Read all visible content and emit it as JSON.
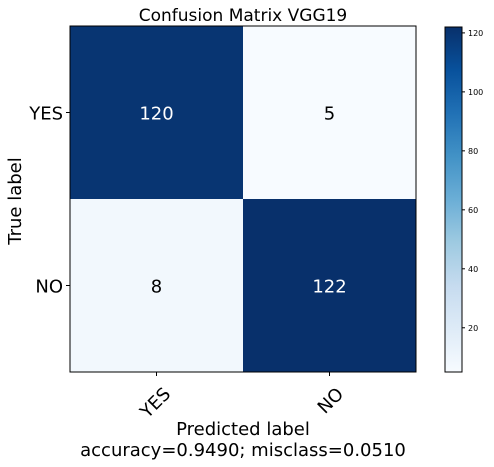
{
  "chart_data": {
    "type": "heatmap",
    "title": "Confusion Matrix VGG19",
    "xlabel": "Predicted label",
    "ylabel": "True label",
    "footer": "accuracy=0.9490; misclass=0.0510",
    "x_categories": [
      "YES",
      "NO"
    ],
    "y_categories": [
      "YES",
      "NO"
    ],
    "matrix": [
      [
        120,
        5
      ],
      [
        8,
        122
      ]
    ],
    "colormap": "Blues",
    "color_min": 5,
    "color_max": 122,
    "colorbar_ticks": [
      20,
      40,
      60,
      80,
      100,
      120
    ],
    "colors": {
      "dark": "#08306b",
      "light": "#f7fbff",
      "cell_text_on_dark": "#ffffff",
      "cell_text_on_light": "#000000"
    }
  }
}
